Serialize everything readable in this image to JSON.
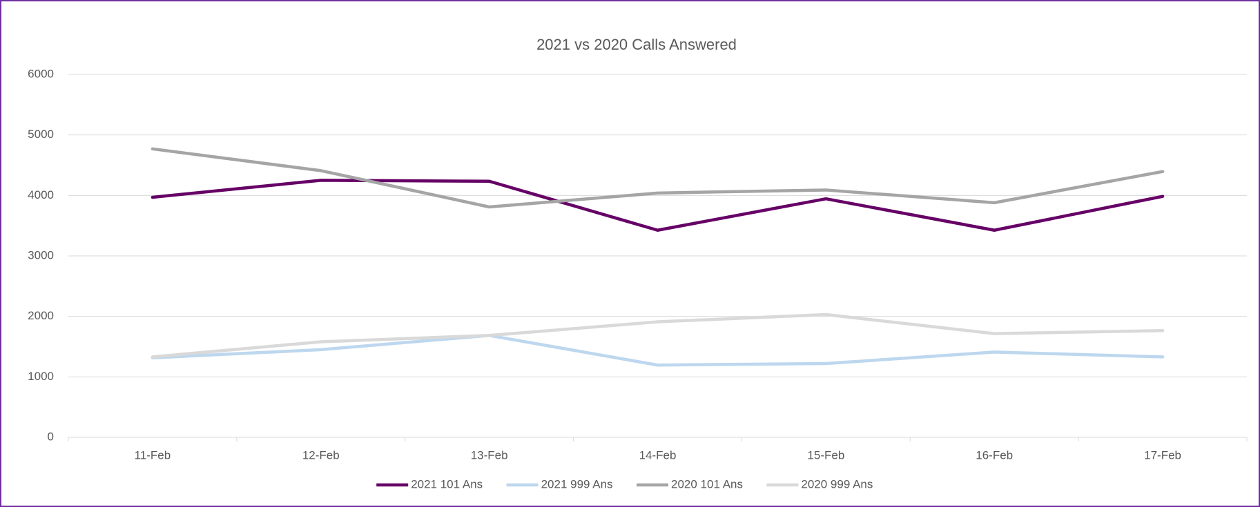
{
  "chart_data": {
    "type": "line",
    "title": "2021 vs 2020 Calls Answered",
    "categories": [
      "11-Feb",
      "12-Feb",
      "13-Feb",
      "14-Feb",
      "15-Feb",
      "16-Feb",
      "17-Feb"
    ],
    "series": [
      {
        "name": "2021 101 Ans",
        "color": "#660066",
        "values": [
          3970,
          4250,
          4235,
          3425,
          3945,
          3425,
          3985
        ]
      },
      {
        "name": "2021 999 Ans",
        "color": "#bdd7ee",
        "values": [
          1315,
          1450,
          1685,
          1195,
          1220,
          1410,
          1330
        ]
      },
      {
        "name": "2020 101 Ans",
        "color": "#a5a5a5",
        "values": [
          4770,
          4410,
          3810,
          4040,
          4090,
          3880,
          4395
        ]
      },
      {
        "name": "2020 999 Ans",
        "color": "#d9d9d9",
        "values": [
          1330,
          1580,
          1685,
          1910,
          2030,
          1715,
          1765
        ]
      }
    ],
    "ylim": [
      0,
      6000
    ],
    "yticks": [
      0,
      1000,
      2000,
      3000,
      4000,
      5000,
      6000
    ],
    "grid": true,
    "legend": "bottom"
  }
}
